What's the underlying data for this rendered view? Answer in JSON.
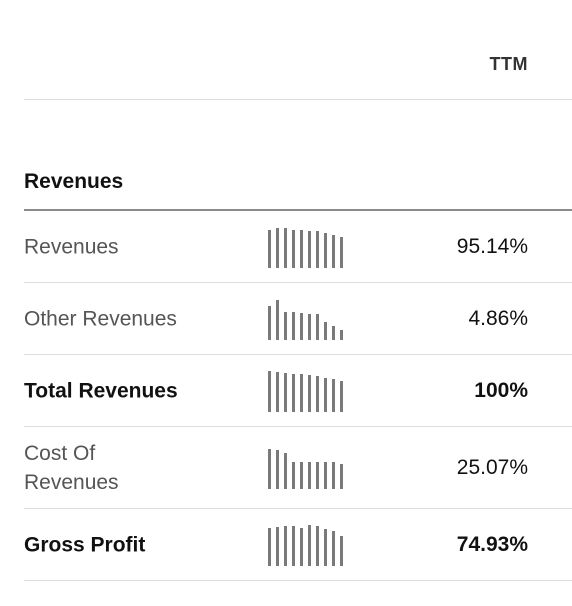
{
  "table": {
    "column_header": "TTM",
    "section_title": "Revenues",
    "rows": [
      {
        "label": "Revenues",
        "value": "95.14%",
        "bold": false,
        "trend": [
          38,
          40,
          40,
          38,
          38,
          37,
          37,
          35,
          33,
          31
        ]
      },
      {
        "label": "Other Revenues",
        "value": "4.86%",
        "bold": false,
        "trend": [
          34,
          40,
          28,
          28,
          27,
          26,
          26,
          18,
          14,
          10
        ]
      },
      {
        "label": "Total Revenues",
        "value": "100%",
        "bold": true,
        "trend": [
          41,
          40,
          39,
          38,
          38,
          37,
          36,
          34,
          33,
          31
        ]
      },
      {
        "label": "Cost Of\nRevenues",
        "value": "25.07%",
        "bold": false,
        "trend": [
          40,
          39,
          36,
          27,
          27,
          27,
          27,
          27,
          27,
          25
        ]
      },
      {
        "label": "Gross Profit",
        "value": "74.93%",
        "bold": true,
        "trend": [
          38,
          39,
          40,
          40,
          38,
          41,
          40,
          37,
          35,
          30
        ]
      }
    ]
  }
}
